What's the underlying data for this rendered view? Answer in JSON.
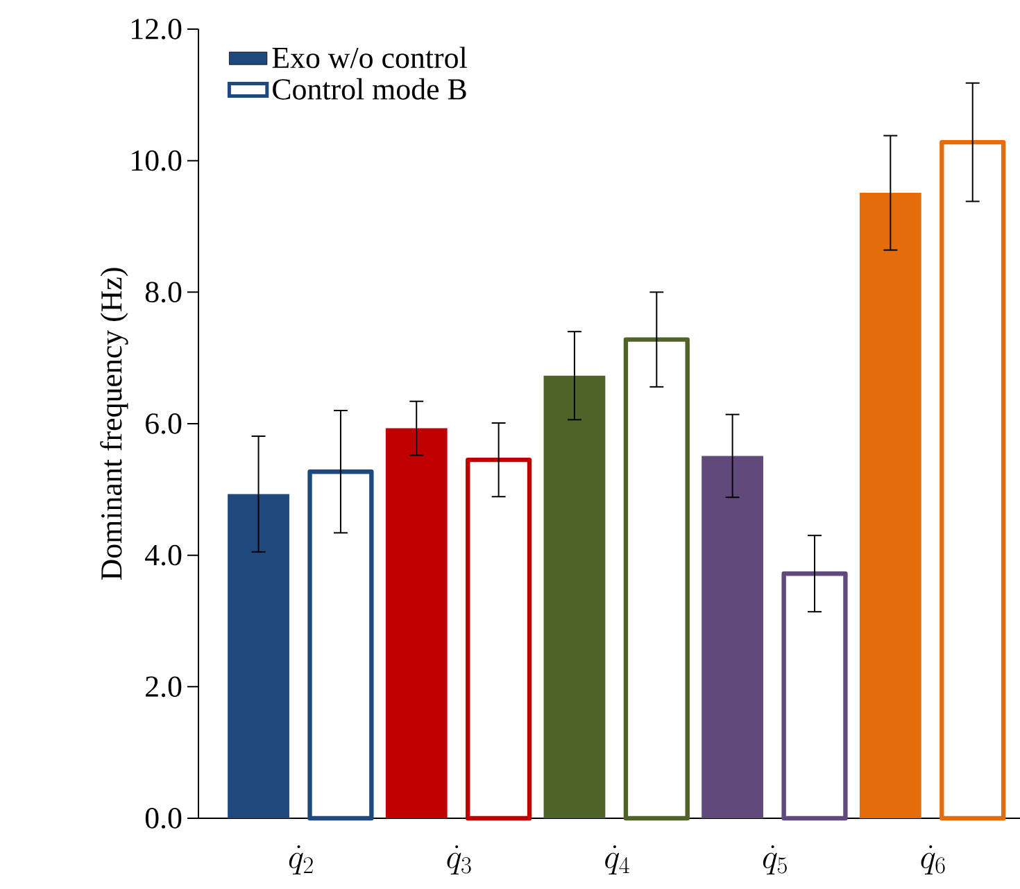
{
  "chart_data": {
    "type": "bar",
    "ylabel": "Dominant frequency (Hz)",
    "categories": [
      "\\dot{q}_{2}",
      "\\dot{q}_{3}",
      "\\dot{q}_{4}",
      "\\dot{q}_{5}",
      "\\dot{q}_{6}"
    ],
    "ylim": [
      0,
      12
    ],
    "yticks": [
      {
        "value": 0,
        "label": "0.0"
      },
      {
        "value": 2,
        "label": "2.0"
      },
      {
        "value": 4,
        "label": "4.0"
      },
      {
        "value": 6,
        "label": "6.0"
      },
      {
        "value": 8,
        "label": "8.0"
      },
      {
        "value": 10,
        "label": "10.0"
      },
      {
        "value": 12,
        "label": "12.0"
      }
    ],
    "legend": "top left",
    "grid": false,
    "series": [
      {
        "name": "Exo w/o control",
        "color": "#1f497d",
        "colors": [
          "#1f497d",
          "#c00000",
          "#4f6228",
          "#604a7b",
          "#e46c0a"
        ],
        "values": [
          4.93,
          5.93,
          6.73,
          5.51,
          9.51
        ],
        "errors": [
          0.88,
          0.41,
          0.67,
          0.63,
          0.87
        ]
      },
      {
        "name": "Control mode B",
        "color": "#1f497d",
        "colors": [
          "#1f497d",
          "#c00000",
          "#4f6228",
          "#604a7b",
          "#e46c0a"
        ],
        "values": [
          5.27,
          5.45,
          7.28,
          3.72,
          10.28
        ],
        "errors": [
          0.93,
          0.56,
          0.72,
          0.58,
          0.9
        ]
      }
    ]
  }
}
